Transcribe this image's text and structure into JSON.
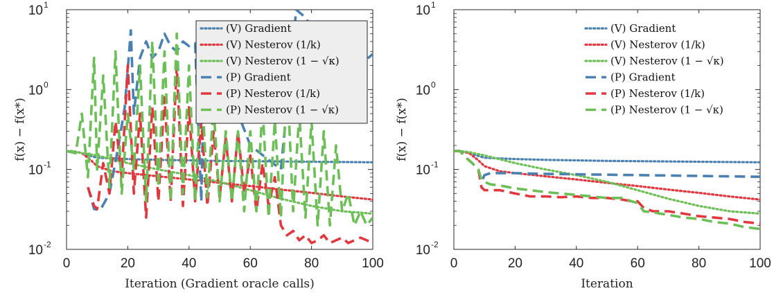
{
  "chart_data": [
    {
      "type": "line",
      "xlabel": "Iteration (Gradient oracle calls)",
      "ylabel": "f(x) − f(x*)",
      "xlim": [
        0,
        100
      ],
      "ylim": [
        0.01,
        10
      ],
      "yscale": "log",
      "xticks": [
        "0",
        "20",
        "40",
        "60",
        "80",
        "100"
      ],
      "yticks": [
        {
          "base": "10",
          "exp": "-2"
        },
        {
          "base": "10",
          "exp": "-1"
        },
        {
          "base": "10",
          "exp": "0"
        },
        {
          "base": "10",
          "exp": "1"
        }
      ],
      "legend_position": "top-right",
      "series": [
        {
          "name": "(V) Gradient",
          "color": "#4a81b0",
          "style": "dotted",
          "x": [
            0,
            2,
            5,
            10,
            20,
            30,
            40,
            50,
            60,
            70,
            80,
            90,
            100
          ],
          "y": [
            0.17,
            0.17,
            0.16,
            0.14,
            0.135,
            0.132,
            0.13,
            0.128,
            0.127,
            0.126,
            0.125,
            0.124,
            0.123
          ]
        },
        {
          "name": "(V) Nesterov (1/k)",
          "color": "#e0383e",
          "style": "dotted",
          "x": [
            0,
            2,
            5,
            8,
            10,
            15,
            20,
            30,
            40,
            50,
            60,
            70,
            80,
            90,
            100
          ],
          "y": [
            0.17,
            0.17,
            0.16,
            0.13,
            0.11,
            0.095,
            0.09,
            0.082,
            0.075,
            0.068,
            0.062,
            0.056,
            0.051,
            0.046,
            0.042
          ]
        },
        {
          "name": "(V) Nesterov (1 − √κ)",
          "color": "#6cbf57",
          "style": "dotted",
          "x": [
            0,
            2,
            5,
            10,
            20,
            30,
            40,
            50,
            60,
            70,
            80,
            90,
            100
          ],
          "y": [
            0.17,
            0.17,
            0.16,
            0.15,
            0.12,
            0.1,
            0.085,
            0.07,
            0.055,
            0.043,
            0.035,
            0.03,
            0.028
          ]
        },
        {
          "name": "(P) Gradient",
          "color": "#4a81b0",
          "style": "dashed",
          "x": [
            7,
            9,
            11,
            14,
            17,
            19,
            21,
            22,
            24,
            26,
            28,
            30,
            32,
            34,
            36,
            38,
            40,
            42,
            44,
            45,
            46,
            50,
            60,
            70,
            75,
            78,
            80,
            90,
            97,
            100
          ],
          "y": [
            0.06,
            0.032,
            0.031,
            0.05,
            0.2,
            0.6,
            5.5,
            0.5,
            2.5,
            4.0,
            2.5,
            3.0,
            5.0,
            3.5,
            3.0,
            4.0,
            3.5,
            3.8,
            0.04,
            3.0,
            3.5,
            2.0,
            0.2,
            0.1,
            10.0,
            8.0,
            6.0,
            2.5,
            2.2,
            2.8
          ]
        },
        {
          "name": "(P) Nesterov (1/k)",
          "color": "#e0383e",
          "style": "dashed",
          "x": [
            7,
            9,
            10,
            12,
            14,
            16,
            18,
            20,
            22,
            24,
            26,
            28,
            30,
            32,
            34,
            36,
            38,
            40,
            42,
            44,
            46,
            48,
            50,
            52,
            54,
            56,
            58,
            60,
            62,
            64,
            66,
            68,
            70,
            72,
            74,
            76,
            78,
            80,
            82,
            84,
            86,
            88,
            90,
            92,
            94,
            96,
            98,
            100
          ],
          "y": [
            0.06,
            0.035,
            0.032,
            0.12,
            0.05,
            0.4,
            0.08,
            2.0,
            0.05,
            0.5,
            0.025,
            0.6,
            0.04,
            0.8,
            0.04,
            2.0,
            0.035,
            0.6,
            0.04,
            0.4,
            0.035,
            0.3,
            0.045,
            0.25,
            0.04,
            0.3,
            0.05,
            0.15,
            0.03,
            0.12,
            0.035,
            0.08,
            0.02,
            0.015,
            0.017,
            0.013,
            0.015,
            0.012,
            0.013,
            0.015,
            0.012,
            0.013,
            0.014,
            0.012,
            0.013,
            0.014,
            0.013,
            0.012
          ]
        },
        {
          "name": "(P) Nesterov (1 − √κ)",
          "color": "#6cbf57",
          "style": "dashed",
          "x": [
            0,
            3,
            5,
            7,
            9,
            10,
            12,
            14,
            16,
            18,
            20,
            22,
            24,
            26,
            28,
            30,
            32,
            34,
            36,
            38,
            40,
            42,
            44,
            46,
            48,
            50,
            52,
            54,
            56,
            58,
            60,
            62,
            64,
            66,
            68,
            70,
            72,
            74,
            76,
            78,
            80,
            82,
            84,
            86,
            88,
            90,
            92,
            94,
            96,
            98,
            100
          ],
          "y": [
            0.17,
            0.16,
            0.5,
            0.08,
            2.5,
            0.1,
            1.5,
            0.06,
            3.0,
            0.05,
            0.5,
            0.1,
            2.0,
            0.04,
            4.0,
            0.06,
            3.0,
            0.04,
            5.0,
            0.05,
            2.0,
            0.04,
            1.5,
            0.045,
            0.6,
            0.04,
            0.3,
            0.04,
            0.3,
            0.03,
            0.3,
            0.03,
            0.6,
            0.025,
            0.4,
            0.025,
            1.5,
            0.03,
            0.5,
            0.025,
            0.4,
            0.02,
            0.3,
            0.02,
            0.2,
            0.03,
            0.05,
            0.02,
            0.03,
            0.02,
            0.025
          ]
        }
      ]
    },
    {
      "type": "line",
      "xlabel": "Iteration",
      "ylabel": "f(x) − f(x*)",
      "xlim": [
        0,
        100
      ],
      "ylim": [
        0.01,
        10
      ],
      "yscale": "log",
      "xticks": [
        "0",
        "20",
        "40",
        "60",
        "80",
        "100"
      ],
      "yticks": [
        {
          "base": "10",
          "exp": "-2"
        },
        {
          "base": "10",
          "exp": "-1"
        },
        {
          "base": "10",
          "exp": "0"
        },
        {
          "base": "10",
          "exp": "1"
        }
      ],
      "legend_position": "top-right",
      "series": [
        {
          "name": "(V) Gradient",
          "color": "#4a81b0",
          "style": "dotted",
          "x": [
            0,
            2,
            5,
            10,
            20,
            30,
            40,
            50,
            60,
            70,
            80,
            90,
            100
          ],
          "y": [
            0.17,
            0.17,
            0.16,
            0.14,
            0.135,
            0.132,
            0.13,
            0.128,
            0.127,
            0.126,
            0.125,
            0.124,
            0.123
          ]
        },
        {
          "name": "(V) Nesterov (1/k)",
          "color": "#e0383e",
          "style": "dotted",
          "x": [
            0,
            2,
            5,
            8,
            10,
            15,
            20,
            30,
            40,
            50,
            60,
            70,
            80,
            90,
            100
          ],
          "y": [
            0.17,
            0.17,
            0.16,
            0.13,
            0.11,
            0.095,
            0.09,
            0.082,
            0.075,
            0.068,
            0.062,
            0.056,
            0.051,
            0.046,
            0.042
          ]
        },
        {
          "name": "(V) Nesterov (1 − √κ)",
          "color": "#6cbf57",
          "style": "dotted",
          "x": [
            0,
            2,
            5,
            10,
            20,
            30,
            40,
            50,
            60,
            70,
            80,
            90,
            100
          ],
          "y": [
            0.17,
            0.17,
            0.165,
            0.15,
            0.12,
            0.1,
            0.085,
            0.07,
            0.055,
            0.043,
            0.035,
            0.03,
            0.028
          ]
        },
        {
          "name": "(P) Gradient",
          "color": "#4a81b0",
          "style": "dashed",
          "x": [
            0,
            2,
            4,
            6,
            8,
            9,
            10,
            12,
            15,
            20,
            30,
            40,
            50,
            60,
            70,
            80,
            90,
            100
          ],
          "y": [
            0.17,
            0.17,
            0.14,
            0.12,
            0.1,
            0.07,
            0.085,
            0.09,
            0.09,
            0.09,
            0.088,
            0.087,
            0.086,
            0.085,
            0.084,
            0.083,
            0.082,
            0.081
          ]
        },
        {
          "name": "(P) Nesterov (1/k)",
          "color": "#e0383e",
          "style": "dashed",
          "x": [
            0,
            2,
            4,
            6,
            8,
            9,
            10,
            12,
            15,
            18,
            20,
            25,
            30,
            35,
            40,
            45,
            50,
            55,
            58,
            60,
            62,
            65,
            70,
            75,
            80,
            85,
            90,
            95,
            100
          ],
          "y": [
            0.17,
            0.17,
            0.14,
            0.12,
            0.1,
            0.06,
            0.055,
            0.055,
            0.055,
            0.052,
            0.05,
            0.046,
            0.046,
            0.045,
            0.046,
            0.044,
            0.044,
            0.042,
            0.04,
            0.04,
            0.033,
            0.03,
            0.03,
            0.028,
            0.026,
            0.025,
            0.024,
            0.022,
            0.021
          ]
        },
        {
          "name": "(P) Nesterov (1 − √κ)",
          "color": "#6cbf57",
          "style": "dashed",
          "x": [
            0,
            2,
            4,
            6,
            8,
            9,
            10,
            12,
            15,
            18,
            20,
            25,
            30,
            35,
            40,
            45,
            50,
            55,
            58,
            60,
            62,
            65,
            70,
            75,
            80,
            85,
            90,
            95,
            100
          ],
          "y": [
            0.17,
            0.17,
            0.14,
            0.12,
            0.1,
            0.075,
            0.07,
            0.065,
            0.063,
            0.06,
            0.058,
            0.055,
            0.052,
            0.05,
            0.048,
            0.046,
            0.044,
            0.044,
            0.04,
            0.038,
            0.03,
            0.029,
            0.027,
            0.025,
            0.024,
            0.022,
            0.021,
            0.019,
            0.018
          ]
        }
      ]
    }
  ]
}
